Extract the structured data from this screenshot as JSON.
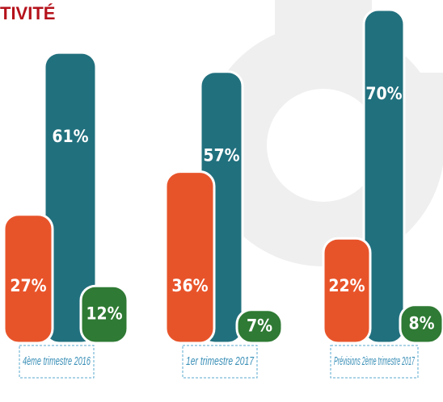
{
  "chart_data": {
    "type": "bar",
    "title": "TIVITÉ",
    "categories": [
      "4ème trimestre 2016",
      "1er trimestre 2017",
      "Prévisions 2ème trimestre 2017"
    ],
    "series": [
      {
        "color": "#e8542a",
        "values": [
          27,
          36,
          22
        ],
        "value_labels": [
          "27%",
          "36%",
          "22%"
        ]
      },
      {
        "color": "#21707e",
        "values": [
          61,
          57,
          70
        ],
        "value_labels": [
          "61%",
          "57%",
          "70%"
        ]
      },
      {
        "color": "#2f7a34",
        "values": [
          12,
          7,
          8
        ],
        "value_labels": [
          "12%",
          "7%",
          "8%"
        ]
      }
    ]
  }
}
